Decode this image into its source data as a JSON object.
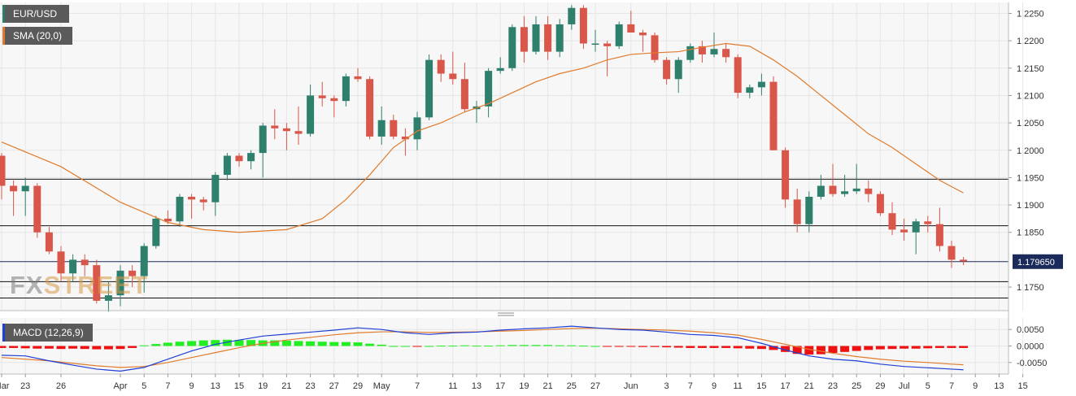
{
  "header": {
    "symbol": "EUR/USD",
    "sma_label": "SMA (20,0)",
    "macd_label": "MACD (12,26,9)"
  },
  "watermark": {
    "part1": "FX",
    "part2": "STREET"
  },
  "colors": {
    "up": "#2f7f6d",
    "down": "#d9564a",
    "sma": "#e07b2c",
    "macd_line": "#1f3fd6",
    "signal_line": "#e07b2c",
    "hist_pos": "#22ee22",
    "hist_neg": "#ee1111",
    "price_tag_bg": "#1a2a5a",
    "grid": "#e6e6e6"
  },
  "chart_data": [
    {
      "type": "candlestick",
      "title": "EUR/USD",
      "ylim": [
        1.1707,
        1.227
      ],
      "yticks": [
        "1.2250",
        "1.2200",
        "1.2150",
        "1.2100",
        "1.2050",
        "1.2000",
        "1.1950",
        "1.1900",
        "1.1850",
        "1.1750"
      ],
      "current_price": 1.17965,
      "current_price_label": "1.179650",
      "horizontal_lines": [
        1.1947,
        1.1862,
        1.176,
        1.173
      ],
      "xticks": [
        {
          "i": 0,
          "label": "Mar"
        },
        {
          "i": 2,
          "label": "23"
        },
        {
          "i": 5,
          "label": "26"
        },
        {
          "i": 10,
          "label": "Apr"
        },
        {
          "i": 12,
          "label": "5"
        },
        {
          "i": 14,
          "label": "7"
        },
        {
          "i": 16,
          "label": "9"
        },
        {
          "i": 18,
          "label": "13"
        },
        {
          "i": 20,
          "label": "15"
        },
        {
          "i": 22,
          "label": "19"
        },
        {
          "i": 24,
          "label": "21"
        },
        {
          "i": 26,
          "label": "23"
        },
        {
          "i": 28,
          "label": "27"
        },
        {
          "i": 30,
          "label": "29"
        },
        {
          "i": 32,
          "label": "May"
        },
        {
          "i": 35,
          "label": "7"
        },
        {
          "i": 38,
          "label": "11"
        },
        {
          "i": 40,
          "label": "13"
        },
        {
          "i": 42,
          "label": "17"
        },
        {
          "i": 44,
          "label": "19"
        },
        {
          "i": 46,
          "label": "21"
        },
        {
          "i": 48,
          "label": "25"
        },
        {
          "i": 50,
          "label": "27"
        },
        {
          "i": 53,
          "label": "Jun"
        },
        {
          "i": 56,
          "label": "3"
        },
        {
          "i": 58,
          "label": "7"
        },
        {
          "i": 60,
          "label": "9"
        },
        {
          "i": 62,
          "label": "11"
        },
        {
          "i": 64,
          "label": "15"
        },
        {
          "i": 66,
          "label": "17"
        },
        {
          "i": 68,
          "label": "21"
        },
        {
          "i": 70,
          "label": "23"
        },
        {
          "i": 72,
          "label": "25"
        },
        {
          "i": 74,
          "label": "29"
        },
        {
          "i": 76,
          "label": "Jul"
        },
        {
          "i": 78,
          "label": "5"
        },
        {
          "i": 80,
          "label": "7"
        },
        {
          "i": 82,
          "label": "9"
        },
        {
          "i": 84,
          "label": "13"
        },
        {
          "i": 86,
          "label": "15"
        }
      ],
      "ohlc": [
        [
          1.199,
          1.1995,
          1.191,
          1.1935
        ],
        [
          1.1935,
          1.1945,
          1.188,
          1.1925
        ],
        [
          1.1925,
          1.195,
          1.188,
          1.1935
        ],
        [
          1.1935,
          1.194,
          1.184,
          1.185
        ],
        [
          1.185,
          1.186,
          1.181,
          1.1815
        ],
        [
          1.1815,
          1.1825,
          1.176,
          1.1775
        ],
        [
          1.1775,
          1.181,
          1.176,
          1.18
        ],
        [
          1.18,
          1.181,
          1.177,
          1.179
        ],
        [
          1.179,
          1.18,
          1.172,
          1.1725
        ],
        [
          1.1725,
          1.176,
          1.1705,
          1.1735
        ],
        [
          1.1735,
          1.179,
          1.1715,
          1.178
        ],
        [
          1.178,
          1.179,
          1.175,
          1.177
        ],
        [
          1.177,
          1.183,
          1.174,
          1.1825
        ],
        [
          1.1825,
          1.188,
          1.182,
          1.1875
        ],
        [
          1.1875,
          1.189,
          1.1865,
          1.187
        ],
        [
          1.187,
          1.192,
          1.186,
          1.1915
        ],
        [
          1.1915,
          1.192,
          1.1875,
          1.191
        ],
        [
          1.191,
          1.1915,
          1.189,
          1.1905
        ],
        [
          1.1905,
          1.196,
          1.188,
          1.1955
        ],
        [
          1.1955,
          1.1995,
          1.1945,
          1.199
        ],
        [
          1.199,
          1.1995,
          1.197,
          1.198
        ],
        [
          1.198,
          1.2,
          1.1965,
          1.1995
        ],
        [
          1.1995,
          1.205,
          1.195,
          1.2045
        ],
        [
          1.2045,
          1.2075,
          1.202,
          1.204
        ],
        [
          1.204,
          1.205,
          1.2,
          1.2035
        ],
        [
          1.2035,
          1.208,
          1.201,
          1.203
        ],
        [
          1.203,
          1.212,
          1.2025,
          1.21
        ],
        [
          1.21,
          1.2125,
          1.208,
          1.2095
        ],
        [
          1.2095,
          1.21,
          1.206,
          1.209
        ],
        [
          1.209,
          1.214,
          1.208,
          1.2135
        ],
        [
          1.2135,
          1.215,
          1.2125,
          1.213
        ],
        [
          1.213,
          1.2135,
          1.202,
          1.2025
        ],
        [
          1.2025,
          1.208,
          1.201,
          1.2055
        ],
        [
          1.2055,
          1.2065,
          1.202,
          1.2025
        ],
        [
          1.2025,
          1.204,
          1.199,
          1.202
        ],
        [
          1.202,
          1.207,
          1.2,
          1.206
        ],
        [
          1.206,
          1.2175,
          1.2055,
          1.2165
        ],
        [
          1.2165,
          1.2175,
          1.2125,
          1.214
        ],
        [
          1.214,
          1.218,
          1.212,
          1.213
        ],
        [
          1.213,
          1.216,
          1.207,
          1.2075
        ],
        [
          1.2075,
          1.209,
          1.205,
          1.208
        ],
        [
          1.208,
          1.215,
          1.206,
          1.2145
        ],
        [
          1.2145,
          1.217,
          1.214,
          1.215
        ],
        [
          1.215,
          1.223,
          1.2145,
          1.2225
        ],
        [
          1.2225,
          1.2245,
          1.216,
          1.218
        ],
        [
          1.218,
          1.2245,
          1.2175,
          1.223
        ],
        [
          1.223,
          1.2245,
          1.2165,
          1.218
        ],
        [
          1.218,
          1.224,
          1.217,
          1.223
        ],
        [
          1.223,
          1.2265,
          1.222,
          1.226
        ],
        [
          1.226,
          1.2265,
          1.2185,
          1.2195
        ],
        [
          1.2195,
          1.222,
          1.218,
          1.2195
        ],
        [
          1.2195,
          1.22,
          1.2135,
          1.219
        ],
        [
          1.219,
          1.2235,
          1.2185,
          1.223
        ],
        [
          1.223,
          1.2255,
          1.2215,
          1.2215
        ],
        [
          1.2215,
          1.222,
          1.218,
          1.221
        ],
        [
          1.221,
          1.2215,
          1.216,
          1.2165
        ],
        [
          1.2165,
          1.217,
          1.212,
          1.213
        ],
        [
          1.213,
          1.217,
          1.2105,
          1.2165
        ],
        [
          1.2165,
          1.2195,
          1.216,
          1.219
        ],
        [
          1.219,
          1.22,
          1.216,
          1.2175
        ],
        [
          1.2175,
          1.2215,
          1.217,
          1.2185
        ],
        [
          1.2185,
          1.2195,
          1.216,
          1.217
        ],
        [
          1.217,
          1.2175,
          1.2095,
          1.2105
        ],
        [
          1.2105,
          1.212,
          1.2095,
          1.2115
        ],
        [
          1.2115,
          1.214,
          1.21,
          1.2125
        ],
        [
          1.2125,
          1.2135,
          1.2,
          1.2
        ],
        [
          1.2,
          1.2005,
          1.1895,
          1.191
        ],
        [
          1.191,
          1.193,
          1.185,
          1.1865
        ],
        [
          1.1865,
          1.1925,
          1.185,
          1.1915
        ],
        [
          1.1915,
          1.1955,
          1.191,
          1.1935
        ],
        [
          1.1935,
          1.1975,
          1.1915,
          1.192
        ],
        [
          1.192,
          1.1955,
          1.1915,
          1.1925
        ],
        [
          1.1925,
          1.1975,
          1.192,
          1.193
        ],
        [
          1.193,
          1.1945,
          1.1905,
          1.192
        ],
        [
          1.192,
          1.1925,
          1.188,
          1.1885
        ],
        [
          1.1885,
          1.1905,
          1.1845,
          1.1855
        ],
        [
          1.1855,
          1.1875,
          1.1835,
          1.185
        ],
        [
          1.185,
          1.1875,
          1.181,
          1.187
        ],
        [
          1.187,
          1.188,
          1.185,
          1.1865
        ],
        [
          1.1865,
          1.1895,
          1.1815,
          1.1825
        ],
        [
          1.1825,
          1.1835,
          1.1785,
          1.18
        ],
        [
          1.18,
          1.1805,
          1.179,
          1.1797
        ]
      ],
      "sma": [
        [
          0,
          1.2015
        ],
        [
          5,
          1.197
        ],
        [
          10,
          1.1905
        ],
        [
          14,
          1.1868
        ],
        [
          17,
          1.1855
        ],
        [
          20,
          1.185
        ],
        [
          24,
          1.1855
        ],
        [
          27,
          1.1875
        ],
        [
          29,
          1.191
        ],
        [
          31,
          1.1955
        ],
        [
          33,
          1.2005
        ],
        [
          35,
          1.2035
        ],
        [
          37,
          1.205
        ],
        [
          39,
          1.207
        ],
        [
          41,
          1.2085
        ],
        [
          43,
          1.2105
        ],
        [
          45,
          1.2125
        ],
        [
          47,
          1.214
        ],
        [
          49,
          1.215
        ],
        [
          51,
          1.2165
        ],
        [
          53,
          1.2175
        ],
        [
          55,
          1.2178
        ],
        [
          57,
          1.218
        ],
        [
          59,
          1.2188
        ],
        [
          61,
          1.2195
        ],
        [
          63,
          1.219
        ],
        [
          65,
          1.2165
        ],
        [
          67,
          1.2135
        ],
        [
          69,
          1.21
        ],
        [
          71,
          1.2065
        ],
        [
          73,
          1.203
        ],
        [
          75,
          1.2005
        ],
        [
          77,
          1.1975
        ],
        [
          79,
          1.1945
        ],
        [
          81,
          1.1922
        ]
      ]
    },
    {
      "type": "macd",
      "title": "MACD (12,26,9)",
      "ylim": [
        -0.0085,
        0.0085
      ],
      "yticks": [
        "0.0050",
        "0.0000",
        "-0.0050"
      ],
      "macd_line": [
        [
          0,
          -0.0028
        ],
        [
          2,
          -0.003
        ],
        [
          4,
          -0.0045
        ],
        [
          6,
          -0.0058
        ],
        [
          8,
          -0.007
        ],
        [
          10,
          -0.0076
        ],
        [
          12,
          -0.0065
        ],
        [
          14,
          -0.004
        ],
        [
          16,
          -0.0015
        ],
        [
          18,
          0.0005
        ],
        [
          20,
          0.0018
        ],
        [
          22,
          0.003
        ],
        [
          24,
          0.0036
        ],
        [
          26,
          0.0042
        ],
        [
          28,
          0.0048
        ],
        [
          30,
          0.0055
        ],
        [
          32,
          0.005
        ],
        [
          34,
          0.004
        ],
        [
          36,
          0.0035
        ],
        [
          38,
          0.004
        ],
        [
          40,
          0.0042
        ],
        [
          42,
          0.0048
        ],
        [
          44,
          0.0052
        ],
        [
          46,
          0.0055
        ],
        [
          48,
          0.006
        ],
        [
          50,
          0.0055
        ],
        [
          52,
          0.005
        ],
        [
          54,
          0.0048
        ],
        [
          56,
          0.0042
        ],
        [
          58,
          0.0035
        ],
        [
          60,
          0.0032
        ],
        [
          62,
          0.0025
        ],
        [
          64,
          0.0008
        ],
        [
          66,
          -0.0012
        ],
        [
          68,
          -0.003
        ],
        [
          70,
          -0.004
        ],
        [
          72,
          -0.0045
        ],
        [
          74,
          -0.0055
        ],
        [
          76,
          -0.0062
        ],
        [
          78,
          -0.0066
        ],
        [
          80,
          -0.007
        ],
        [
          81,
          -0.0072
        ]
      ],
      "signal_line": [
        [
          0,
          -0.0035
        ],
        [
          4,
          -0.0045
        ],
        [
          8,
          -0.006
        ],
        [
          10,
          -0.0065
        ],
        [
          12,
          -0.0062
        ],
        [
          14,
          -0.005
        ],
        [
          16,
          -0.0035
        ],
        [
          18,
          -0.002
        ],
        [
          20,
          -0.0005
        ],
        [
          22,
          0.0008
        ],
        [
          24,
          0.0018
        ],
        [
          26,
          0.0026
        ],
        [
          28,
          0.0034
        ],
        [
          30,
          0.004
        ],
        [
          32,
          0.0043
        ],
        [
          34,
          0.0043
        ],
        [
          36,
          0.0041
        ],
        [
          38,
          0.0042
        ],
        [
          40,
          0.0043
        ],
        [
          42,
          0.0045
        ],
        [
          44,
          0.0047
        ],
        [
          46,
          0.005
        ],
        [
          48,
          0.0053
        ],
        [
          50,
          0.0054
        ],
        [
          52,
          0.0052
        ],
        [
          54,
          0.005
        ],
        [
          56,
          0.0048
        ],
        [
          58,
          0.0045
        ],
        [
          60,
          0.004
        ],
        [
          62,
          0.0033
        ],
        [
          64,
          0.002
        ],
        [
          66,
          0.0005
        ],
        [
          68,
          -0.001
        ],
        [
          70,
          -0.0022
        ],
        [
          72,
          -0.0032
        ],
        [
          74,
          -0.004
        ],
        [
          76,
          -0.0046
        ],
        [
          78,
          -0.005
        ],
        [
          80,
          -0.0055
        ],
        [
          81,
          -0.0057
        ]
      ],
      "histogram": [
        -0.0006,
        -0.0006,
        -0.0007,
        -0.0008,
        -0.0008,
        -0.0009,
        -0.0008,
        -0.0009,
        -0.001,
        -0.001,
        -0.0009,
        -0.0006,
        0.0002,
        0.0006,
        0.001,
        0.0013,
        0.0015,
        0.0017,
        0.0018,
        0.0019,
        0.0018,
        0.0018,
        0.0017,
        0.0017,
        0.0016,
        0.0015,
        0.0014,
        0.0013,
        0.0012,
        0.0012,
        0.0011,
        0.0007,
        0.0004,
        0.0,
        0.0,
        -0.0002,
        0.0,
        0.0001,
        0.0001,
        0.0002,
        0.0001,
        0.0001,
        0.0002,
        0.0003,
        0.0003,
        0.0003,
        0.0003,
        0.0002,
        0.0002,
        0.0001,
        0.0,
        -0.0001,
        -0.0001,
        -0.0002,
        -0.0003,
        -0.0003,
        -0.0004,
        -0.0005,
        -0.0006,
        -0.0006,
        -0.0006,
        -0.0006,
        -0.0007,
        -0.0008,
        -0.0009,
        -0.0012,
        -0.0018,
        -0.0024,
        -0.0026,
        -0.0025,
        -0.0021,
        -0.0018,
        -0.0015,
        -0.0012,
        -0.001,
        -0.0009,
        -0.0008,
        -0.0008,
        -0.0007,
        -0.0006,
        -0.0006,
        -0.0006
      ]
    }
  ]
}
